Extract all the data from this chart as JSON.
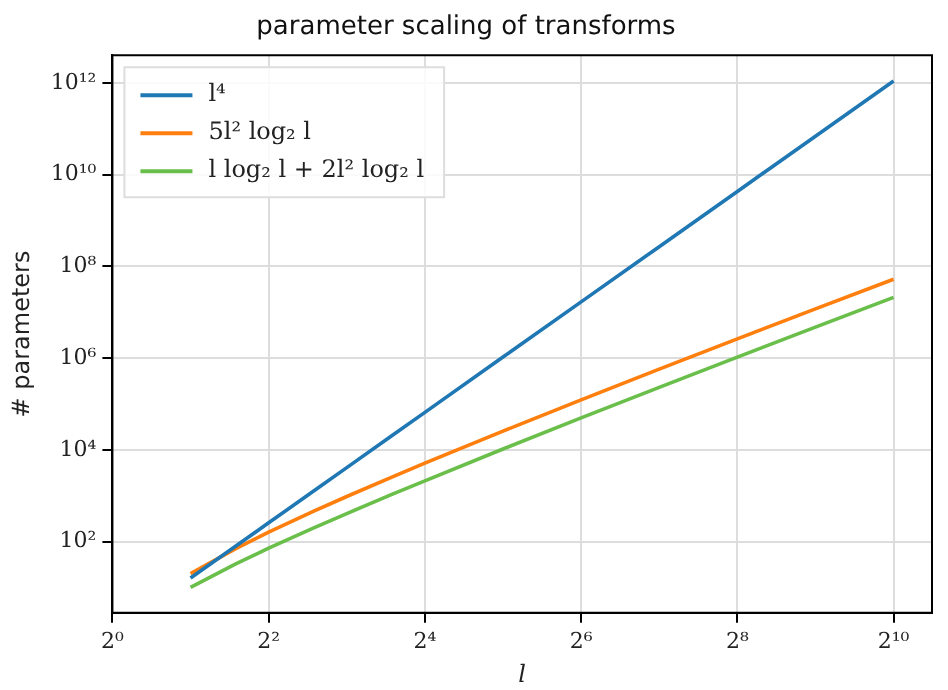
{
  "chart_data": {
    "type": "line",
    "title": "parameter scaling of transforms",
    "xlabel": "l",
    "ylabel": "# parameters",
    "x": [
      2,
      3,
      4,
      6,
      8,
      12,
      16,
      32,
      64,
      128,
      256,
      512,
      1024
    ],
    "series": [
      {
        "name": "l⁴",
        "color": "#1f77b4",
        "values": [
          16,
          81,
          256,
          1296,
          4096,
          20736,
          65536,
          1050000,
          16800000,
          268000000,
          4290000000,
          68700000000,
          1100000000000
        ]
      },
      {
        "name": "5l² log₂ l",
        "color": "#ff7f0e",
        "values": [
          20,
          71,
          160,
          465,
          960,
          2580,
          5120,
          25600,
          123000,
          573000,
          2620000,
          11800000,
          52400000
        ]
      },
      {
        "name": "l log₂ l + 2l² log₂ l",
        "color": "#6abf4b",
        "values": [
          10,
          33,
          72,
          202,
          408,
          1080,
          2110,
          10400,
          49500,
          230000,
          1050000,
          4720000,
          21000000
        ]
      }
    ],
    "log": "xy",
    "xlim": [
      1,
      1440
    ],
    "ylim": [
      2.8,
      4000000000000
    ],
    "xticks": [
      {
        "value": 1,
        "label": "2⁰"
      },
      {
        "value": 4,
        "label": "2²"
      },
      {
        "value": 16,
        "label": "2⁴"
      },
      {
        "value": 64,
        "label": "2⁶"
      },
      {
        "value": 256,
        "label": "2⁸"
      },
      {
        "value": 1024,
        "label": "2¹⁰"
      }
    ],
    "yticks": [
      {
        "value": 100,
        "label": "10²"
      },
      {
        "value": 10000,
        "label": "10⁴"
      },
      {
        "value": 1000000,
        "label": "10⁶"
      },
      {
        "value": 100000000,
        "label": "10⁸"
      },
      {
        "value": 10000000000,
        "label": "10¹⁰"
      },
      {
        "value": 1000000000000,
        "label": "10¹²"
      }
    ],
    "grid": true,
    "legend": "top left",
    "marker": "none",
    "line_style": "solid"
  }
}
